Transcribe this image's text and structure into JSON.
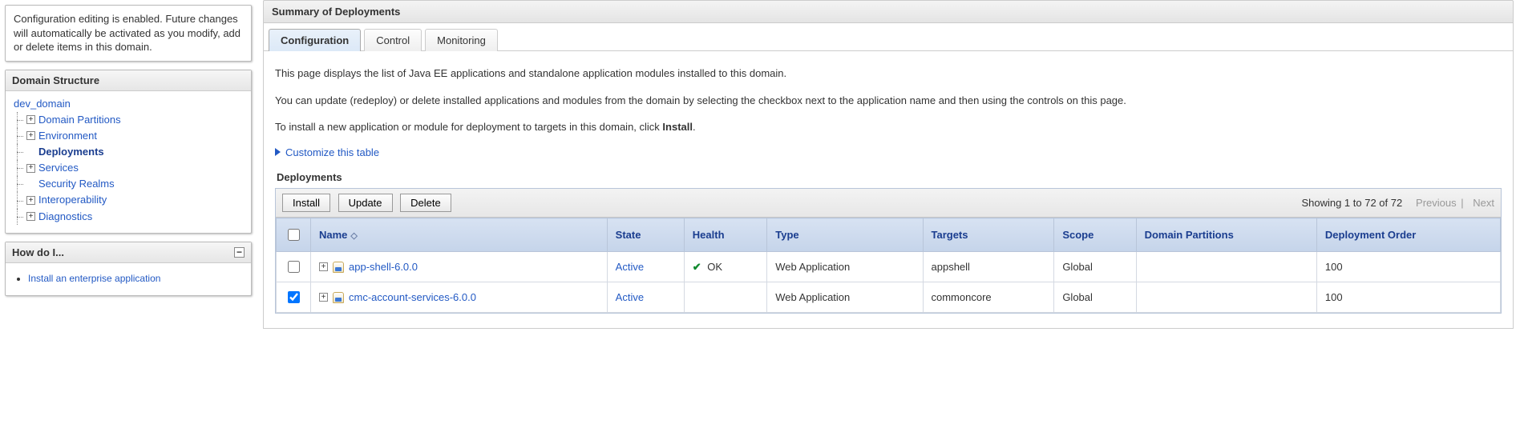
{
  "info_notice": "Configuration editing is enabled. Future changes will automatically be activated as you modify, add or delete items in this domain.",
  "domain_structure": {
    "title": "Domain Structure",
    "root": "dev_domain",
    "items": [
      {
        "label": "Domain Partitions",
        "expandable": true,
        "selected": false
      },
      {
        "label": "Environment",
        "expandable": true,
        "selected": false
      },
      {
        "label": "Deployments",
        "expandable": false,
        "selected": true
      },
      {
        "label": "Services",
        "expandable": true,
        "selected": false
      },
      {
        "label": "Security Realms",
        "expandable": false,
        "selected": false
      },
      {
        "label": "Interoperability",
        "expandable": true,
        "selected": false
      },
      {
        "label": "Diagnostics",
        "expandable": true,
        "selected": false
      }
    ]
  },
  "howdoi": {
    "title": "How do I...",
    "items": [
      "Install an enterprise application"
    ]
  },
  "main": {
    "title": "Summary of Deployments",
    "tabs": [
      {
        "label": "Configuration",
        "active": true
      },
      {
        "label": "Control",
        "active": false
      },
      {
        "label": "Monitoring",
        "active": false
      }
    ],
    "intro1": "This page displays the list of Java EE applications and standalone application modules installed to this domain.",
    "intro2": "You can update (redeploy) or delete installed applications and modules from the domain by selecting the checkbox next to the application name and then using the controls on this page.",
    "intro3_pre": "To install a new application or module for deployment to targets in this domain, click ",
    "intro3_bold": "Install",
    "intro3_post": ".",
    "customize_label": "Customize this table",
    "table": {
      "title": "Deployments",
      "buttons": {
        "install": "Install",
        "update": "Update",
        "delete": "Delete"
      },
      "pager": {
        "showing": "Showing 1 to 72 of 72",
        "previous": "Previous",
        "next": "Next"
      },
      "columns": {
        "name": "Name",
        "state": "State",
        "health": "Health",
        "type": "Type",
        "targets": "Targets",
        "scope": "Scope",
        "domain_partitions": "Domain Partitions",
        "deployment_order": "Deployment Order"
      },
      "rows": [
        {
          "checked": false,
          "name": "app-shell-6.0.0",
          "state": "Active",
          "health": "OK",
          "type": "Web Application",
          "targets": "appshell",
          "scope": "Global",
          "domain_partitions": "",
          "deployment_order": "100"
        },
        {
          "checked": true,
          "name": "cmc-account-services-6.0.0",
          "state": "Active",
          "health": "",
          "type": "Web Application",
          "targets": "commoncore",
          "scope": "Global",
          "domain_partitions": "",
          "deployment_order": "100"
        }
      ]
    }
  }
}
